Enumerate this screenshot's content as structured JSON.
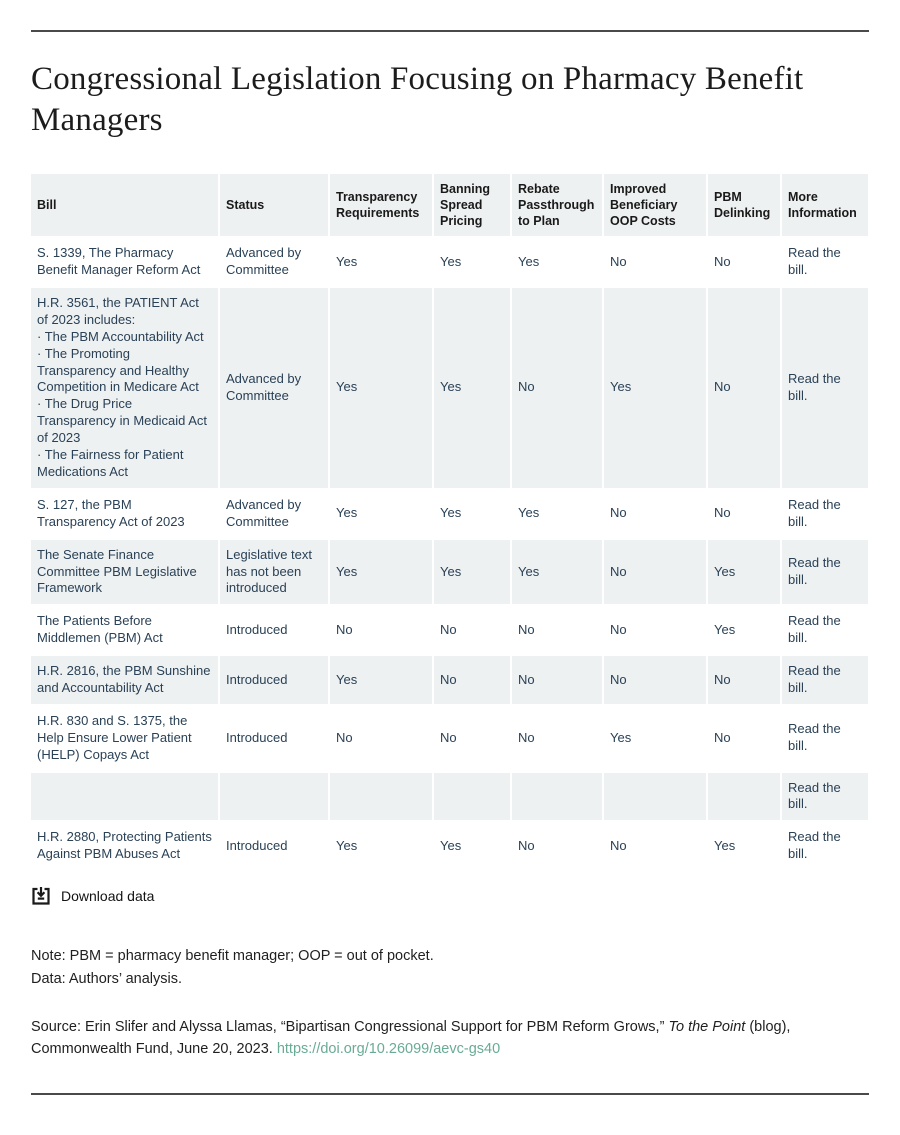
{
  "page": {
    "title": "Congressional Legislation Focusing on Pharmacy Benefit Managers"
  },
  "table": {
    "columns": [
      {
        "key": "bill",
        "label": "Bill"
      },
      {
        "key": "status",
        "label": "Status"
      },
      {
        "key": "transparency",
        "label": "Transparency Requirements"
      },
      {
        "key": "banning",
        "label": "Banning Spread Pricing"
      },
      {
        "key": "rebate",
        "label": "Rebate Passthrough to Plan"
      },
      {
        "key": "oop",
        "label": "Improved Beneficiary OOP Costs"
      },
      {
        "key": "delinking",
        "label": "PBM Delinking"
      },
      {
        "key": "more",
        "label": "More Information"
      }
    ],
    "rows": [
      {
        "bill": "S. 1339, The Pharmacy Benefit Manager Reform Act",
        "status": "Advanced by Committee",
        "transparency": "Yes",
        "banning": "Yes",
        "rebate": "Yes",
        "oop": "No",
        "delinking": "No",
        "more": "Read the bill."
      },
      {
        "bill": "H.R. 3561, the PATIENT Act of 2023 includes:\n· The PBM Accountability Act\n· The Promoting Transparency and Healthy Competition in Medicare Act\n· The Drug Price Transparency in Medicaid Act of 2023\n· The Fairness for Patient Medications Act",
        "status": "Advanced by Committee",
        "transparency": "Yes",
        "banning": "Yes",
        "rebate": "No",
        "oop": "Yes",
        "delinking": "No",
        "more": "Read the bill."
      },
      {
        "bill": "S. 127, the PBM Transparency Act of 2023",
        "status": "Advanced by Committee",
        "transparency": "Yes",
        "banning": "Yes",
        "rebate": "Yes",
        "oop": "No",
        "delinking": "No",
        "more": "Read the bill."
      },
      {
        "bill": "The Senate Finance Committee PBM Legislative Framework",
        "status": "Legislative text has not been introduced",
        "transparency": "Yes",
        "banning": "Yes",
        "rebate": "Yes",
        "oop": "No",
        "delinking": "Yes",
        "more": "Read the bill."
      },
      {
        "bill": "The Patients Before Middlemen (PBM) Act",
        "status": "Introduced",
        "transparency": "No",
        "banning": "No",
        "rebate": "No",
        "oop": "No",
        "delinking": "Yes",
        "more": "Read the bill."
      },
      {
        "bill": "H.R. 2816, the PBM Sunshine and Accountability Act",
        "status": "Introduced",
        "transparency": "Yes",
        "banning": "No",
        "rebate": "No",
        "oop": "No",
        "delinking": "No",
        "more": "Read the bill."
      },
      {
        "bill": "H.R. 830 and S. 1375, the Help Ensure Lower Patient (HELP) Copays Act",
        "status": "Introduced",
        "transparency": "No",
        "banning": "No",
        "rebate": "No",
        "oop": "Yes",
        "delinking": "No",
        "more": "Read the bill."
      },
      {
        "bill": "",
        "status": "",
        "transparency": "",
        "banning": "",
        "rebate": "",
        "oop": "",
        "delinking": "",
        "more": "Read the bill."
      },
      {
        "bill": "H.R. 2880, Protecting Patients Against PBM Abuses Act",
        "status": "Introduced",
        "transparency": "Yes",
        "banning": "Yes",
        "rebate": "No",
        "oop": "No",
        "delinking": "Yes",
        "more": "Read the bill."
      }
    ]
  },
  "download": {
    "label": "Download data",
    "icon": "download-tray-icon"
  },
  "notes": {
    "note_line": "Note: PBM = pharmacy benefit manager; OOP = out of pocket.",
    "data_line": "Data: Authors’ analysis."
  },
  "source": {
    "prefix": "Source: Erin Slifer and Alyssa Llamas, “Bipartisan Congressional Support for PBM Reform Grows,” ",
    "italic": "To the Point",
    "suffix": " (blog), Commonwealth Fund, June 20, 2023. ",
    "link": "https://doi.org/10.26099/aevc-gs40"
  },
  "colors": {
    "rule": "#4a4a4a",
    "row_alt_background": "#eef1f2",
    "body_text": "#2a4156",
    "header_text": "#1a1a1a",
    "doi_link": "#6aab96"
  }
}
